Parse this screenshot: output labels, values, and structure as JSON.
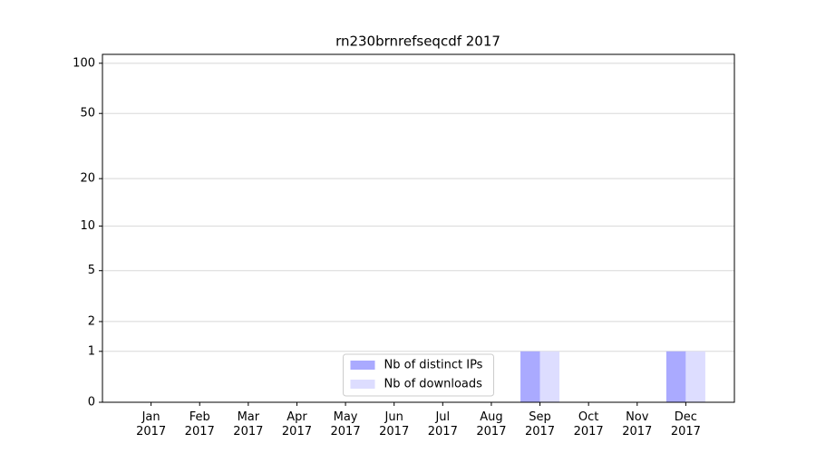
{
  "chart_data": {
    "type": "bar",
    "title": "rn230brnrefseqcdf 2017",
    "categories": [
      "Jan 2017",
      "Feb 2017",
      "Mar 2017",
      "Apr 2017",
      "May 2017",
      "Jun 2017",
      "Jul 2017",
      "Aug 2017",
      "Sep 2017",
      "Oct 2017",
      "Nov 2017",
      "Dec 2017"
    ],
    "series": [
      {
        "name": "Nb of distinct IPs",
        "color": "#aaaaff",
        "values": [
          0,
          0,
          0,
          0,
          0,
          0,
          0,
          0,
          1,
          0,
          0,
          1
        ]
      },
      {
        "name": "Nb of downloads",
        "color": "#ddddff",
        "values": [
          0,
          0,
          0,
          0,
          0,
          0,
          0,
          0,
          1,
          0,
          0,
          1
        ]
      }
    ],
    "yscale": "log1p",
    "ylim": [
      0,
      113
    ],
    "yticks": [
      0,
      1,
      2,
      5,
      10,
      20,
      50,
      100
    ],
    "grid": true,
    "legend": "lower center"
  }
}
